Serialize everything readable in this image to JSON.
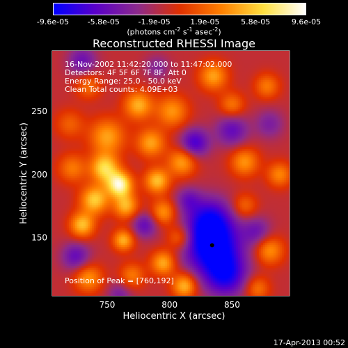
{
  "colorbar": {
    "tick_labels": [
      "-9.6e-05",
      "-5.8e-05",
      "-1.9e-05",
      "1.9e-05",
      "5.8e-05",
      "9.6e-05"
    ],
    "units_base": "(photons cm",
    "units_exp1": "-2",
    "units_mid": " s",
    "units_exp2": "-1",
    "units_end": " asec",
    "units_exp3": "-2",
    "units_close": ")",
    "colors": [
      "#0000ff",
      "#5a00c8",
      "#8c2a8c",
      "#e03000",
      "#ff8000",
      "#ffe040",
      "#ffffff"
    ]
  },
  "title": "Reconstructed RHESSI Image",
  "info": {
    "line1": "16-Nov-2002 11:42:20.000 to 11:47:02.000",
    "line2": "Detectors: 4F 5F 6F 7F 8F, Att 0",
    "line3": "Energy Range: 25.0 - 50.0 keV",
    "line4": "Clean    Total counts: 4.09E+03",
    "peak": "Position of Peak = [760,192]"
  },
  "footer": "17-Apr-2013 00:52",
  "chart_data": {
    "type": "heatmap",
    "title": "Reconstructed RHESSI Image",
    "xlabel": "Heliocentric X (arcsec)",
    "ylabel": "Heliocentric Y (arcsec)",
    "xlim": [
      706,
      896
    ],
    "ylim": [
      104,
      298
    ],
    "x_ticks": [
      750,
      800,
      850
    ],
    "y_ticks": [
      150,
      200,
      250
    ],
    "x_tick_labels": [
      "750",
      "800",
      "850"
    ],
    "y_tick_labels": [
      "150",
      "200",
      "250"
    ],
    "colorbar_range": [
      -9.6e-05,
      9.6e-05
    ],
    "peak_position": [
      760,
      192
    ],
    "marker_position": [
      834,
      144
    ],
    "blobs": [
      {
        "x": 760,
        "y": 192,
        "v": 9.6e-05,
        "s": 7
      },
      {
        "x": 748,
        "y": 205,
        "v": 7.5e-05,
        "s": 8
      },
      {
        "x": 740,
        "y": 180,
        "v": 7e-05,
        "s": 8
      },
      {
        "x": 765,
        "y": 175,
        "v": 6e-05,
        "s": 7
      },
      {
        "x": 730,
        "y": 160,
        "v": 6.5e-05,
        "s": 7
      },
      {
        "x": 763,
        "y": 148,
        "v": 6e-05,
        "s": 6
      },
      {
        "x": 750,
        "y": 230,
        "v": 5.5e-05,
        "s": 10
      },
      {
        "x": 775,
        "y": 255,
        "v": 6e-05,
        "s": 8
      },
      {
        "x": 785,
        "y": 225,
        "v": 5.5e-05,
        "s": 8
      },
      {
        "x": 802,
        "y": 250,
        "v": 5e-05,
        "s": 9
      },
      {
        "x": 810,
        "y": 210,
        "v": 5.5e-05,
        "s": 8
      },
      {
        "x": 790,
        "y": 195,
        "v": 6.5e-05,
        "s": 7
      },
      {
        "x": 795,
        "y": 170,
        "v": 5e-05,
        "s": 7
      },
      {
        "x": 808,
        "y": 150,
        "v": 4.5e-05,
        "s": 7
      },
      {
        "x": 795,
        "y": 130,
        "v": 6e-05,
        "s": 7
      },
      {
        "x": 812,
        "y": 112,
        "v": 6.5e-05,
        "s": 7
      },
      {
        "x": 735,
        "y": 118,
        "v": 5e-05,
        "s": 8
      },
      {
        "x": 770,
        "y": 120,
        "v": 4e-05,
        "s": 7
      },
      {
        "x": 835,
        "y": 278,
        "v": 5.5e-05,
        "s": 8
      },
      {
        "x": 878,
        "y": 270,
        "v": 4e-05,
        "s": 7
      },
      {
        "x": 850,
        "y": 255,
        "v": 4e-05,
        "s": 7
      },
      {
        "x": 860,
        "y": 210,
        "v": 5e-05,
        "s": 8
      },
      {
        "x": 888,
        "y": 200,
        "v": 4.5e-05,
        "s": 7
      },
      {
        "x": 860,
        "y": 175,
        "v": 3.5e-05,
        "s": 7
      },
      {
        "x": 880,
        "y": 140,
        "v": 5e-05,
        "s": 8
      },
      {
        "x": 870,
        "y": 110,
        "v": 4e-05,
        "s": 7
      },
      {
        "x": 720,
        "y": 240,
        "v": 3e-05,
        "s": 8
      },
      {
        "x": 722,
        "y": 205,
        "v": 4e-05,
        "s": 8
      },
      {
        "x": 735,
        "y": 270,
        "v": 3.5e-05,
        "s": 7
      },
      {
        "x": 834,
        "y": 144,
        "v": -9.6e-05,
        "s": 16
      },
      {
        "x": 832,
        "y": 165,
        "v": -5.5e-05,
        "s": 12
      },
      {
        "x": 845,
        "y": 120,
        "v": -6.5e-05,
        "s": 12
      },
      {
        "x": 820,
        "y": 225,
        "v": -6e-05,
        "s": 8
      },
      {
        "x": 850,
        "y": 235,
        "v": -4.5e-05,
        "s": 9
      },
      {
        "x": 870,
        "y": 155,
        "v": -3.5e-05,
        "s": 8
      },
      {
        "x": 725,
        "y": 135,
        "v": -4.5e-05,
        "s": 8
      },
      {
        "x": 780,
        "y": 160,
        "v": -4.5e-05,
        "s": 7
      },
      {
        "x": 815,
        "y": 180,
        "v": -3.5e-05,
        "s": 7
      },
      {
        "x": 730,
        "y": 290,
        "v": -4e-05,
        "s": 8
      },
      {
        "x": 790,
        "y": 285,
        "v": -2.5e-05,
        "s": 7
      },
      {
        "x": 880,
        "y": 240,
        "v": -3e-05,
        "s": 8
      },
      {
        "x": 760,
        "y": 105,
        "v": -3e-05,
        "s": 7
      }
    ]
  }
}
